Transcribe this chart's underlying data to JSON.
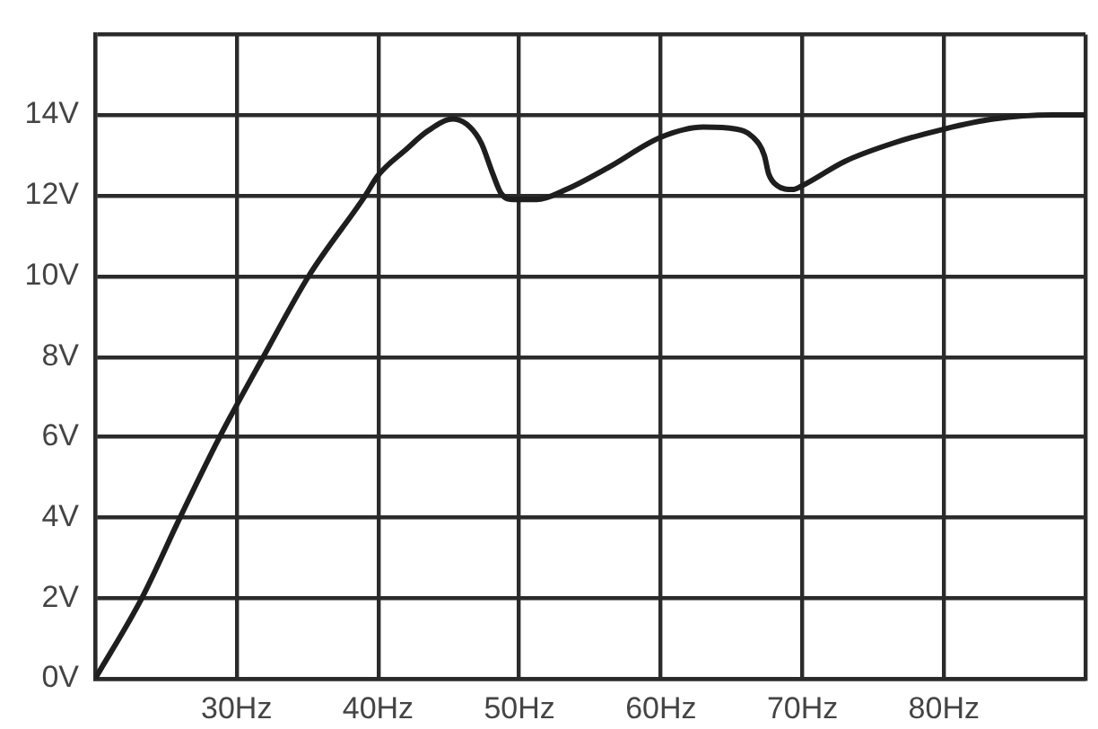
{
  "chart_data": {
    "type": "line",
    "x": [
      20,
      23.3,
      26,
      28.8,
      31.9,
      35.1,
      39.1,
      40,
      42,
      43.5,
      45.3,
      46.5,
      47.3,
      48.1,
      48.7,
      49.6,
      51.2,
      53.3,
      56.3,
      60,
      63,
      65.3,
      66.5,
      67.3,
      67.6,
      68.2,
      69.3,
      70,
      73,
      76.4,
      80,
      83.5,
      87.7,
      90
    ],
    "values": [
      0,
      2,
      4,
      6,
      8,
      10,
      12,
      12.5,
      13.15,
      13.6,
      13.9,
      13.7,
      13.3,
      12.55,
      12.05,
      11.9,
      11.9,
      12.15,
      12.7,
      13.45,
      13.7,
      13.65,
      13.45,
      13,
      12.55,
      12.25,
      12.15,
      12.25,
      12.85,
      13.3,
      13.65,
      13.9,
      14,
      14
    ],
    "color": "#1e1e1e",
    "marker": "none",
    "xlim": [
      20,
      90
    ],
    "xticks": [
      {
        "value": 20,
        "label": null
      },
      {
        "value": 30,
        "label": "30Hz"
      },
      {
        "value": 40,
        "label": "40Hz"
      },
      {
        "value": 50,
        "label": "50Hz"
      },
      {
        "value": 60,
        "label": "60Hz"
      },
      {
        "value": 70,
        "label": "70Hz"
      },
      {
        "value": 80,
        "label": "80Hz"
      },
      {
        "value": 90,
        "label": null
      }
    ],
    "ylim": [
      0,
      16
    ],
    "yticks": [
      {
        "value": 0,
        "label": "0V"
      },
      {
        "value": 2,
        "label": "2V"
      },
      {
        "value": 4,
        "label": "4V"
      },
      {
        "value": 6,
        "label": "6V"
      },
      {
        "value": 8,
        "label": "8V"
      },
      {
        "value": 10,
        "label": "10V"
      },
      {
        "value": 12,
        "label": "12V"
      },
      {
        "value": 14,
        "label": "14V"
      },
      {
        "value": 16,
        "label": null
      }
    ],
    "grid": true
  }
}
